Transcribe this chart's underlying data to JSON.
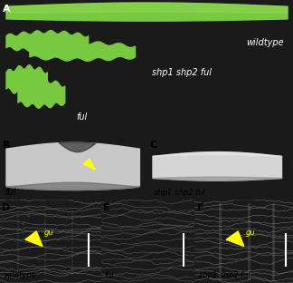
{
  "fig_width": 3.24,
  "fig_height": 3.12,
  "dpi": 100,
  "bg_color": "#1a1a1a",
  "panel_A_bg": "#0d0d0d",
  "panel_B_bg": "#808080",
  "panel_C_bg": "#b8b8b8",
  "panel_D_bg": "#a0a0a0",
  "panel_E_bg": "#909090",
  "panel_F_bg": "#a8a8a8",
  "silique_color": "#78c840",
  "arrow_color": "#ffff00",
  "scale_bar_color": "#ffffff",
  "label_A_color": "#ffffff",
  "label_BF_color": "#000000",
  "text_color_A": "#ffffff",
  "text_color_BF": "#000000",
  "panel_positions": {
    "A": [
      0.0,
      0.515,
      1.0,
      0.485
    ],
    "B": [
      0.0,
      0.295,
      0.5,
      0.22
    ],
    "C": [
      0.5,
      0.295,
      0.5,
      0.22
    ],
    "D": [
      0.0,
      0.0,
      0.345,
      0.295
    ],
    "E": [
      0.345,
      0.0,
      0.32,
      0.295
    ],
    "F": [
      0.665,
      0.0,
      0.335,
      0.295
    ]
  }
}
